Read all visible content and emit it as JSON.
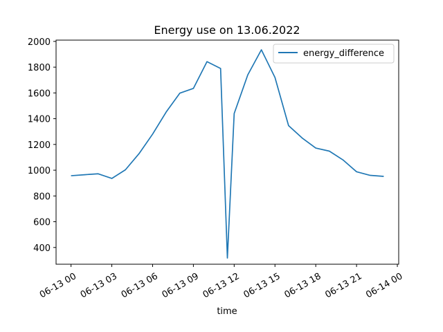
{
  "chart_data": {
    "type": "line",
    "title": "Energy use on 13.06.2022",
    "xlabel": "time",
    "ylabel": "",
    "x_tick_labels": [
      "06-13 00",
      "06-13 03",
      "06-13 06",
      "06-13 09",
      "06-13 12",
      "06-13 15",
      "06-13 18",
      "06-13 21",
      "06-14 00"
    ],
    "x_tick_hours": [
      0,
      3,
      6,
      9,
      12,
      15,
      18,
      21,
      24
    ],
    "y_ticks": [
      400,
      600,
      800,
      1000,
      1200,
      1400,
      1600,
      1800,
      2000
    ],
    "xlim_hours": [
      -1.1,
      24.1
    ],
    "ylim": [
      270,
      2010
    ],
    "legend_position": "upper right",
    "grid": false,
    "series": [
      {
        "name": "energy_difference",
        "color": "#1f77b4",
        "x_hours": [
          0,
          1,
          2,
          3,
          4,
          5,
          6,
          7,
          8,
          9,
          10,
          11,
          11.5,
          12,
          13,
          14,
          15,
          16,
          17,
          18,
          19,
          20,
          21,
          22,
          23
        ],
        "values": [
          957,
          965,
          972,
          936,
          1003,
          1128,
          1280,
          1452,
          1598,
          1635,
          1843,
          1790,
          318,
          1440,
          1740,
          1935,
          1720,
          1346,
          1250,
          1172,
          1148,
          1080,
          988,
          960,
          952
        ]
      }
    ]
  }
}
